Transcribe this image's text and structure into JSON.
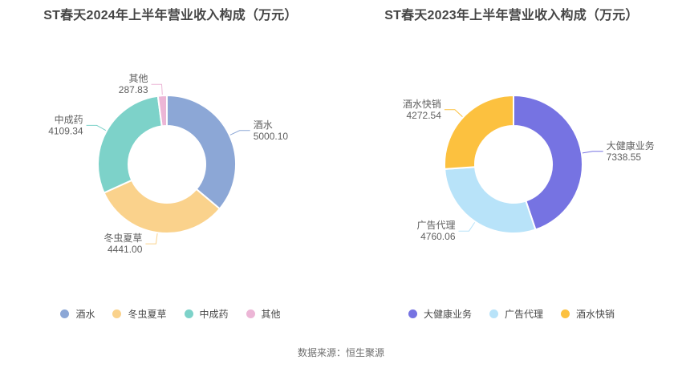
{
  "source_text": "数据来源：恒生聚源",
  "chart_data": [
    {
      "type": "pie",
      "subtype": "donut",
      "title": "ST春天2024年上半年营业收入构成（万元）",
      "categories": [
        "酒水",
        "冬虫夏草",
        "中成药",
        "其他"
      ],
      "values": [
        5000.1,
        4441.0,
        4109.34,
        287.83
      ],
      "value_labels": [
        "5000.10",
        "4441.00",
        "4109.34",
        "287.83"
      ],
      "colors": [
        "#8CA7D6",
        "#FAD28C",
        "#7DD2C9",
        "#ECB6D6"
      ],
      "legend_position": "bottom",
      "labels_outside_with_leader_lines": true,
      "start_angle_deg_from_top_clockwise": 0
    },
    {
      "type": "pie",
      "subtype": "donut",
      "title": "ST春天2023年上半年营业收入构成（万元）",
      "categories": [
        "大健康业务",
        "广告代理",
        "酒水快销"
      ],
      "values": [
        7338.55,
        4760.06,
        4272.54
      ],
      "value_labels": [
        "7338.55",
        "4760.06",
        "4272.54"
      ],
      "colors": [
        "#7673E2",
        "#B8E3F9",
        "#FCC13F"
      ],
      "legend_position": "bottom",
      "labels_outside_with_leader_lines": true,
      "start_angle_deg_from_top_clockwise": 0
    }
  ]
}
